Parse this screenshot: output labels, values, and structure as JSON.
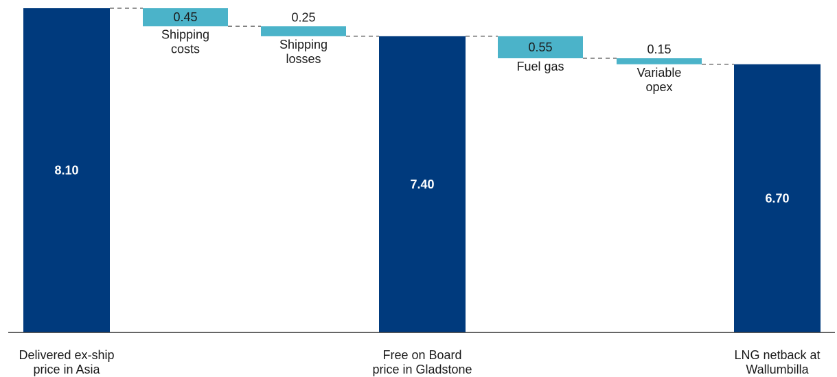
{
  "chart_data": {
    "type": "bar",
    "subtype": "waterfall",
    "title": "",
    "xlabel": "",
    "ylabel": "",
    "ylim": [
      0,
      8.1
    ],
    "grid": false,
    "legend": "none",
    "colors": {
      "total": "#003a7d",
      "step": "#4bb3c9",
      "axis": "#333333",
      "connector": "#555555"
    },
    "bars": [
      {
        "kind": "total",
        "value": 8.1,
        "value_label": "8.10",
        "category": [
          "Delivered ex-ship",
          "price in Asia"
        ]
      },
      {
        "kind": "step",
        "value": 0.45,
        "value_label": "0.45",
        "label": [
          "Shipping",
          "costs"
        ]
      },
      {
        "kind": "step",
        "value": 0.25,
        "value_label": "0.25",
        "label": [
          "Shipping",
          "losses"
        ]
      },
      {
        "kind": "total",
        "value": 7.4,
        "value_label": "7.40",
        "category": [
          "Free on Board",
          "price in Gladstone"
        ]
      },
      {
        "kind": "step",
        "value": 0.55,
        "value_label": "0.55",
        "label": [
          "Fuel gas"
        ]
      },
      {
        "kind": "step",
        "value": 0.15,
        "value_label": "0.15",
        "label": [
          "Variable",
          "opex"
        ]
      },
      {
        "kind": "total",
        "value": 6.7,
        "value_label": "6.70",
        "category": [
          "LNG netback at",
          "Wallumbilla"
        ]
      }
    ]
  }
}
